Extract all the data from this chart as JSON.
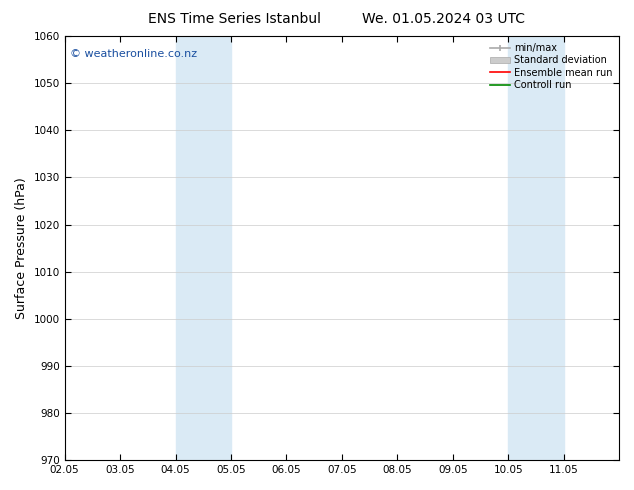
{
  "title_left": "ENS Time Series Istanbul",
  "title_right": "We. 01.05.2024 03 UTC",
  "ylabel": "Surface Pressure (hPa)",
  "ylim": [
    970,
    1060
  ],
  "yticks": [
    970,
    980,
    990,
    1000,
    1010,
    1020,
    1030,
    1040,
    1050,
    1060
  ],
  "xtick_labels": [
    "02.05",
    "03.05",
    "04.05",
    "05.05",
    "06.05",
    "07.05",
    "08.05",
    "09.05",
    "10.05",
    "11.05"
  ],
  "xtick_days": [
    2,
    3,
    4,
    5,
    6,
    7,
    8,
    9,
    10,
    11
  ],
  "shaded_regions": [
    {
      "x_start_day": 4,
      "x_end_day": 4.5
    },
    {
      "x_start_day": 4.5,
      "x_end_day": 5
    },
    {
      "x_start_day": 10,
      "x_end_day": 10.5
    },
    {
      "x_start_day": 10.5,
      "x_end_day": 11
    }
  ],
  "shade_color": "#daeaf5",
  "background_color": "#ffffff",
  "watermark": "© weatheronline.co.nz",
  "watermark_color": "#1a4fa0",
  "legend_minmax_color": "#aaaaaa",
  "legend_stddev_color": "#cccccc",
  "legend_ens_color": "#ff0000",
  "legend_ctrl_color": "#008800",
  "grid_color": "#cccccc",
  "title_fontsize": 10,
  "tick_fontsize": 7.5,
  "ylabel_fontsize": 9,
  "watermark_fontsize": 8
}
